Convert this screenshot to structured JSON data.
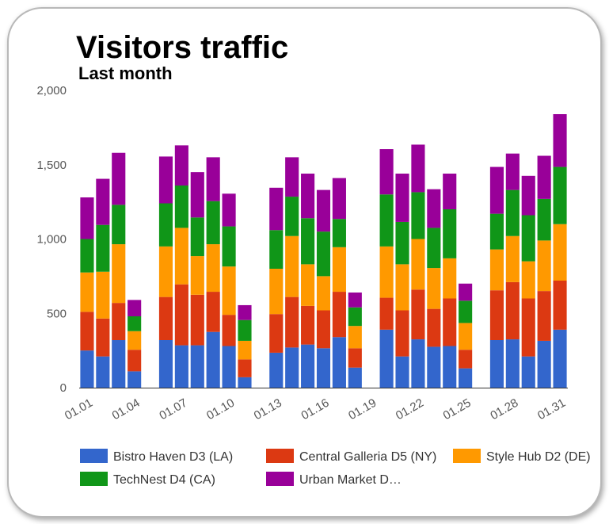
{
  "chart_data": {
    "type": "bar",
    "stacked": true,
    "title": "Visitors traffic",
    "subtitle": "Last month",
    "xlabel": "",
    "ylabel": "",
    "ylim": [
      0,
      2000
    ],
    "yticks": [
      0,
      500,
      1000,
      1500,
      2000
    ],
    "ytick_labels": [
      "0",
      "500",
      "1,000",
      "1,500",
      "2,000"
    ],
    "grid": false,
    "legend_position": "bottom",
    "categories": [
      "01.01",
      "01.02",
      "01.03",
      "01.04",
      "01.05",
      "01.06",
      "01.07",
      "01.08",
      "01.09",
      "01.10",
      "01.11",
      "01.12",
      "01.13",
      "01.14",
      "01.15",
      "01.16",
      "01.17",
      "01.18",
      "01.19",
      "01.20",
      "01.21",
      "01.22",
      "01.23",
      "01.24",
      "01.25",
      "01.26",
      "01.27",
      "01.28",
      "01.29",
      "01.30",
      "01.31"
    ],
    "visible_xtick_labels": [
      "01.01",
      "01.04",
      "01.07",
      "01.10",
      "01.13",
      "01.16",
      "01.19",
      "01.22",
      "01.25",
      "01.28",
      "01.31"
    ],
    "series": [
      {
        "name": "Bistro Haven D3 (LA)",
        "color": "#3366cc",
        "values": [
          250,
          210,
          320,
          110,
          null,
          320,
          285,
          285,
          375,
          280,
          70,
          null,
          235,
          270,
          290,
          265,
          340,
          135,
          null,
          390,
          210,
          325,
          275,
          280,
          130,
          null,
          320,
          325,
          210,
          315,
          390
        ]
      },
      {
        "name": "Central Galleria D5 (NY)",
        "color": "#dc3912",
        "values": [
          260,
          255,
          250,
          145,
          null,
          290,
          410,
          340,
          270,
          210,
          120,
          null,
          260,
          340,
          260,
          255,
          305,
          130,
          null,
          215,
          310,
          335,
          255,
          320,
          125,
          null,
          335,
          385,
          390,
          335,
          330
        ]
      },
      {
        "name": "Style Hub D2 (DE)",
        "color": "#ff9900",
        "values": [
          265,
          315,
          395,
          125,
          null,
          340,
          380,
          260,
          320,
          325,
          125,
          null,
          305,
          410,
          280,
          230,
          300,
          150,
          null,
          345,
          310,
          340,
          275,
          270,
          180,
          null,
          275,
          310,
          250,
          340,
          380
        ]
      },
      {
        "name": "TechNest D4 (CA)",
        "color": "#109618",
        "values": [
          225,
          315,
          265,
          100,
          null,
          290,
          285,
          260,
          290,
          270,
          140,
          null,
          260,
          265,
          310,
          300,
          190,
          125,
          null,
          350,
          285,
          315,
          270,
          330,
          150,
          null,
          240,
          310,
          310,
          280,
          385
        ]
      },
      {
        "name": "Urban Market D…",
        "color": "#990099",
        "values": [
          280,
          310,
          350,
          110,
          null,
          315,
          270,
          305,
          295,
          220,
          100,
          null,
          285,
          265,
          300,
          280,
          275,
          100,
          null,
          305,
          325,
          320,
          260,
          240,
          115,
          null,
          315,
          245,
          265,
          290,
          355
        ]
      }
    ]
  }
}
